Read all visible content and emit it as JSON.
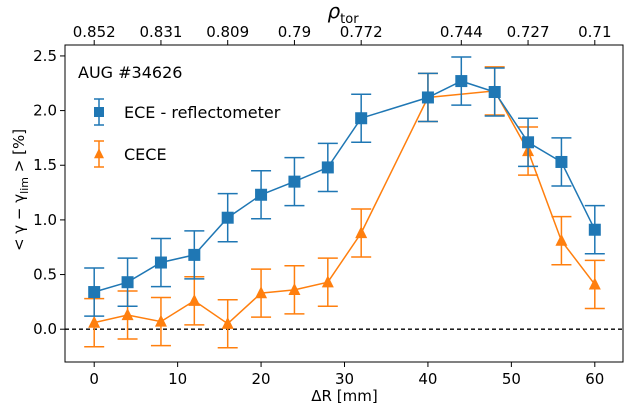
{
  "chart_data": {
    "type": "scatter",
    "annotation": "AUG #34626",
    "xlabel": "ΔR [mm]",
    "ylabel": "< γ − γ",
    "ylabel_sub": "lim",
    "ylabel_tail": " > [%]",
    "top_axis_label": "ρ",
    "top_axis_label_sub": "tor",
    "xlim": [
      -3.5,
      63.5
    ],
    "ylim": [
      -0.3,
      2.6
    ],
    "x_ticks": [
      0,
      10,
      20,
      30,
      40,
      50,
      60
    ],
    "y_ticks": [
      0.0,
      0.5,
      1.0,
      1.5,
      2.0,
      2.5
    ],
    "y_tick_labels": [
      "0.0",
      "0.5",
      "1.0",
      "1.5",
      "2.0",
      "2.5"
    ],
    "top_ticks": [
      {
        "x": 0,
        "label": "0.852"
      },
      {
        "x": 8,
        "label": "0.831"
      },
      {
        "x": 16,
        "label": "0.809"
      },
      {
        "x": 24,
        "label": "0.79"
      },
      {
        "x": 32,
        "label": "0.772"
      },
      {
        "x": 44,
        "label": "0.744"
      },
      {
        "x": 52,
        "label": "0.727"
      },
      {
        "x": 60,
        "label": "0.71"
      }
    ],
    "reference_line": {
      "y": 0.0,
      "style": "dashed"
    },
    "legend_position": "upper-left",
    "series": [
      {
        "name": "ECE - reflectometer",
        "color": "#1f77b4",
        "marker": "square",
        "x": [
          0,
          4,
          8,
          12,
          16,
          20,
          24,
          28,
          32,
          40,
          44,
          48,
          52,
          56,
          60
        ],
        "y": [
          0.34,
          0.43,
          0.61,
          0.68,
          1.02,
          1.23,
          1.35,
          1.48,
          1.93,
          2.12,
          2.27,
          2.17,
          1.71,
          1.53,
          0.91
        ],
        "yerr": [
          0.22,
          0.22,
          0.22,
          0.22,
          0.22,
          0.22,
          0.22,
          0.22,
          0.22,
          0.22,
          0.22,
          0.22,
          0.22,
          0.22,
          0.22
        ]
      },
      {
        "name": "CECE",
        "color": "#ff7f0e",
        "marker": "triangle",
        "x": [
          0,
          4,
          8,
          12,
          16,
          20,
          24,
          28,
          32,
          40,
          48,
          52,
          56,
          60
        ],
        "y": [
          0.06,
          0.13,
          0.07,
          0.26,
          0.05,
          0.33,
          0.36,
          0.43,
          0.88,
          2.12,
          2.18,
          1.63,
          0.81,
          0.41
        ],
        "yerr": [
          0.22,
          0.22,
          0.22,
          0.22,
          0.22,
          0.22,
          0.22,
          0.22,
          0.22,
          0.22,
          0.22,
          0.22,
          0.22,
          0.22
        ]
      }
    ]
  }
}
